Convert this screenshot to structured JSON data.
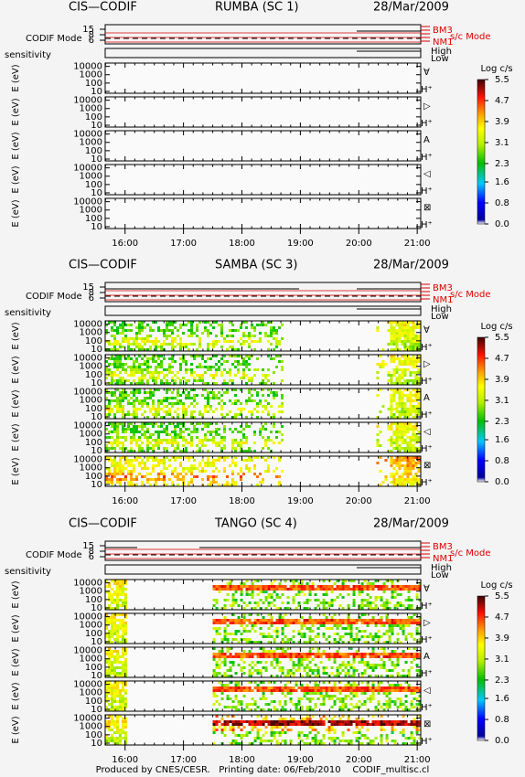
{
  "blocks": [
    {
      "instrument": "CIS—CODIF",
      "spacecraft": "RUMBA (SC 1)",
      "date": "28/Mar/2009",
      "coverage": []
    },
    {
      "instrument": "CIS—CODIF",
      "spacecraft": "SAMBA (SC 3)",
      "date": "28/Mar/2009",
      "coverage": [
        [
          15.66,
          18.72
        ],
        [
          20.3,
          21.06
        ]
      ]
    },
    {
      "instrument": "CIS—CODIF",
      "spacecraft": "TANGO (SC 4)",
      "date": "28/Mar/2009",
      "coverage": [
        [
          15.66,
          16.05
        ],
        [
          17.5,
          21.06
        ]
      ]
    }
  ],
  "mode_panel": {
    "label": "CODIF Mode",
    "ticks": [
      15,
      8,
      6
    ],
    "sc_labels": [
      "BM3",
      "NM1"
    ],
    "sc_title": "s/c Mode"
  },
  "sensitivity": {
    "label": "sensitivity",
    "levels": [
      "High",
      "Low"
    ]
  },
  "energy_axis": {
    "label": "E (eV)",
    "ylim": [
      6,
      25000
    ],
    "yticks": [
      10000,
      1000,
      100,
      10
    ],
    "log": true
  },
  "panels": [
    {
      "symbol": "∀",
      "species": "H⁺"
    },
    {
      "symbol": "▷",
      "species": "H⁺"
    },
    {
      "symbol": "A",
      "species": "H⁺"
    },
    {
      "symbol": "◁",
      "species": "H⁺"
    },
    {
      "symbol": "⊠",
      "species": "H⁺"
    }
  ],
  "time_axis": {
    "xlim": [
      15.66,
      21.06
    ],
    "xticks": [
      {
        "value": 16,
        "label": "16:00"
      },
      {
        "value": 17,
        "label": "17:00"
      },
      {
        "value": 18,
        "label": "18:00"
      },
      {
        "value": 19,
        "label": "19:00"
      },
      {
        "value": 20,
        "label": "20:00"
      },
      {
        "value": 21,
        "label": "21:00"
      }
    ]
  },
  "colorbar": {
    "title": "Log c/s",
    "lim": [
      0,
      5.5
    ],
    "ticks": [
      5.5,
      4.7,
      3.9,
      3.1,
      2.3,
      1.6,
      0.8,
      {
        "value": 0,
        "label": "0.0"
      }
    ]
  },
  "footer": "Produced by CNES/CESR.   Printing date: 06/Feb/2010    CODIF_multisc.cl"
}
